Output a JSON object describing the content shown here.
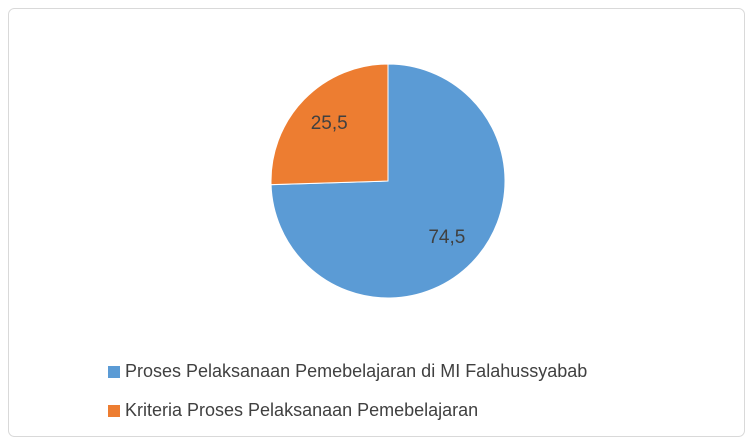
{
  "chart_data": {
    "type": "pie",
    "categories": [
      "Proses Pelaksanaan Pemebelajaran di MI Falahussyabab",
      "Kriteria Proses Pelaksanaan Pemebelajaran"
    ],
    "values": [
      74.5,
      25.5
    ],
    "value_labels": [
      "74,5",
      "25,5"
    ],
    "colors": [
      "#5b9bd5",
      "#ed7d31"
    ],
    "legend": "bottom"
  }
}
